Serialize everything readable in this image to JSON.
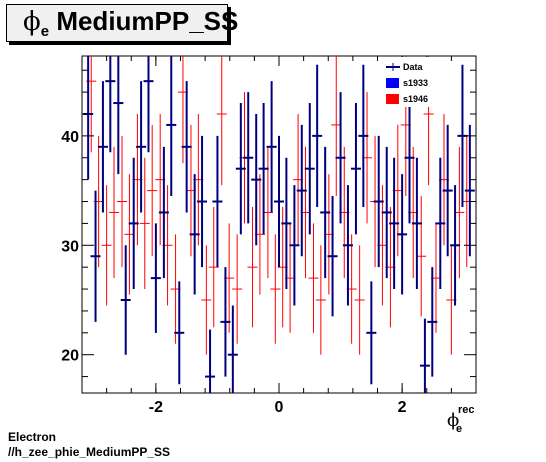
{
  "title": {
    "symbol": "ϕ",
    "sub": "e",
    "text": "MediumPP_SS"
  },
  "footer": {
    "line1": "Electron",
    "line2": "//h_zee_phie_MediumPP_SS"
  },
  "chart_data": {
    "type": "scatter",
    "style": "error-bars",
    "title": "ϕe MediumPP_SS",
    "xlabel": {
      "symbol": "ϕ",
      "sub": "e",
      "sup": "rec"
    },
    "ylabel": "",
    "xlim": [
      -3.2,
      3.2
    ],
    "ylim": [
      16.5,
      47.3
    ],
    "xticks": [
      -2,
      0,
      2
    ],
    "yticks": [
      20,
      30,
      40
    ],
    "legend": {
      "position": "top-right",
      "entries": [
        {
          "label": "Data",
          "color": "#00007f",
          "kind": "marker"
        },
        {
          "label": "s1933",
          "color": "#0000ff",
          "kind": "fill"
        },
        {
          "label": "s1946",
          "color": "#ff0000",
          "kind": "fill"
        }
      ]
    },
    "series": [
      {
        "name": "Data",
        "color": "#00007f",
        "x": [
          -3.1,
          -2.98,
          -2.86,
          -2.74,
          -2.61,
          -2.49,
          -2.36,
          -2.24,
          -2.12,
          -2.0,
          -1.87,
          -1.75,
          -1.62,
          -1.5,
          -1.37,
          -1.25,
          -1.12,
          -1.0,
          -0.87,
          -0.75,
          -0.62,
          -0.5,
          -0.37,
          -0.25,
          -0.12,
          0.0,
          0.12,
          0.25,
          0.37,
          0.5,
          0.62,
          0.75,
          0.87,
          1.0,
          1.12,
          1.25,
          1.37,
          1.5,
          1.62,
          1.75,
          1.87,
          2.0,
          2.12,
          2.24,
          2.37,
          2.49,
          2.62,
          2.74,
          2.86,
          2.98,
          3.1
        ],
        "y": [
          42,
          29,
          39,
          45,
          43,
          25,
          32,
          39,
          45,
          27,
          33,
          41,
          22,
          39,
          31,
          34,
          18,
          34,
          23,
          20,
          37,
          38,
          36,
          37,
          39,
          34,
          32,
          30,
          35,
          37,
          40,
          33,
          29,
          38,
          30,
          37,
          40,
          22,
          34,
          33,
          32,
          31,
          38,
          32,
          19,
          23,
          32,
          35,
          30,
          40,
          35
        ],
        "err": [
          6,
          6,
          6,
          6.5,
          6.5,
          5,
          6,
          6,
          6.5,
          5,
          6,
          6.5,
          4.7,
          6,
          5.5,
          6,
          4.3,
          6,
          5,
          4.5,
          6,
          6,
          6,
          6,
          6,
          6,
          6,
          5.5,
          6,
          6,
          6.5,
          6,
          5.5,
          6,
          5.5,
          6,
          6.5,
          4.7,
          6,
          6,
          6,
          5.5,
          6,
          6,
          4.3,
          5,
          6,
          6,
          5.5,
          6.5,
          6
        ]
      },
      {
        "name": "s1946",
        "color": "#ff0000",
        "x": [
          -3.05,
          -2.93,
          -2.8,
          -2.68,
          -2.55,
          -2.43,
          -2.3,
          -2.18,
          -2.06,
          -1.93,
          -1.81,
          -1.68,
          -1.56,
          -1.43,
          -1.31,
          -1.18,
          -1.06,
          -0.93,
          -0.81,
          -0.68,
          -0.56,
          -0.43,
          -0.31,
          -0.18,
          -0.06,
          0.06,
          0.18,
          0.31,
          0.43,
          0.56,
          0.68,
          0.81,
          0.93,
          1.06,
          1.18,
          1.31,
          1.43,
          1.56,
          1.68,
          1.81,
          1.93,
          2.06,
          2.18,
          2.31,
          2.43,
          2.55,
          2.68,
          2.8,
          2.93,
          3.05
        ],
        "y": [
          45,
          34,
          30,
          33,
          34,
          31,
          36,
          32,
          35,
          36,
          30,
          26,
          44,
          35,
          36,
          25,
          28,
          42,
          27,
          26,
          38,
          28,
          31,
          33,
          26,
          28,
          27,
          36,
          33,
          27,
          25,
          31,
          41,
          33,
          26,
          25,
          38,
          34,
          30,
          28,
          35,
          41,
          33,
          29,
          42,
          27,
          36,
          25,
          33,
          34
        ],
        "err": [
          6.5,
          6,
          5.5,
          6,
          6,
          5.5,
          6,
          6,
          6,
          6,
          5.5,
          5,
          6.5,
          6,
          6,
          5,
          5.5,
          6.5,
          5,
          5,
          6,
          5.5,
          5.5,
          6,
          5,
          5.5,
          5,
          6,
          6,
          5,
          5,
          5.5,
          6.5,
          6,
          5,
          5,
          6,
          6,
          5.5,
          5.5,
          6,
          6.5,
          6,
          5.5,
          6.5,
          5,
          6,
          5,
          6,
          6
        ]
      }
    ]
  }
}
